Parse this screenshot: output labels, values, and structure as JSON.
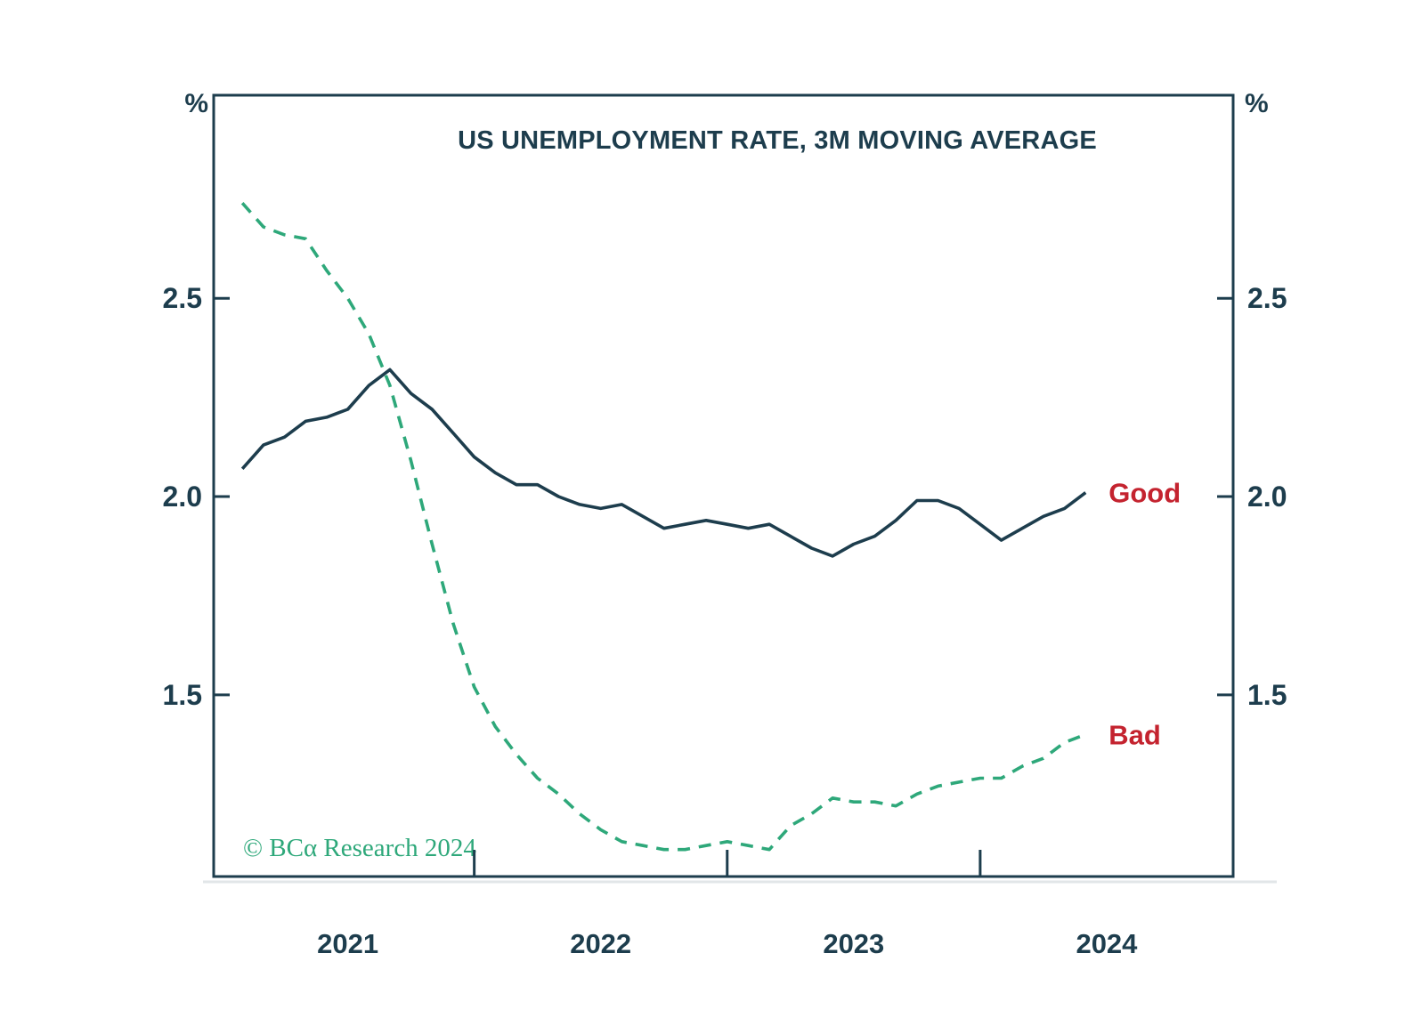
{
  "page": {
    "background": "#ffffff"
  },
  "colors": {
    "navy": "#1d3d4d",
    "green": "#2ea87a",
    "red": "#c4232f",
    "shadow": "#ccd3d7"
  },
  "axes": {
    "percent_left": "%",
    "percent_right": "%"
  },
  "annotations": {
    "copyright": "© BCα Research 2024"
  },
  "chart_data": {
    "type": "line",
    "title": "US UNEMPLOYMENT RATE, 3M MOVING AVERAGE",
    "y_unit": "%",
    "grid": false,
    "legend": "inline-end-labels",
    "xlim": [
      2020.97,
      2025.0
    ],
    "ylim": [
      1.042,
      3.012
    ],
    "y_ticks": [
      "2.5",
      "2.0",
      "1.5"
    ],
    "y_tick_values": [
      2.5,
      2.0,
      1.5
    ],
    "x_tick_years": [
      2022,
      2023,
      2024
    ],
    "x_year_labels": [
      "2021",
      "2022",
      "2023",
      "2024"
    ],
    "series_label_color": "#c4232f",
    "x_months": [
      "2021-02",
      "2021-03",
      "2021-04",
      "2021-05",
      "2021-06",
      "2021-07",
      "2021-08",
      "2021-09",
      "2021-10",
      "2021-11",
      "2021-12",
      "2022-01",
      "2022-02",
      "2022-03",
      "2022-04",
      "2022-05",
      "2022-06",
      "2022-07",
      "2022-08",
      "2022-09",
      "2022-10",
      "2022-11",
      "2022-12",
      "2023-01",
      "2023-02",
      "2023-03",
      "2023-04",
      "2023-05",
      "2023-06",
      "2023-07",
      "2023-08",
      "2023-09",
      "2023-10",
      "2023-11",
      "2023-12",
      "2024-01",
      "2024-02",
      "2024-03",
      "2024-04",
      "2024-05",
      "2024-06"
    ],
    "series": [
      {
        "name": "Good",
        "line_style": "solid",
        "color": "#1d3d4d",
        "values": [
          2.07,
          2.13,
          2.15,
          2.19,
          2.2,
          2.22,
          2.28,
          2.32,
          2.26,
          2.22,
          2.16,
          2.1,
          2.06,
          2.03,
          2.03,
          2.0,
          1.98,
          1.97,
          1.98,
          1.95,
          1.92,
          1.93,
          1.94,
          1.93,
          1.92,
          1.93,
          1.9,
          1.87,
          1.85,
          1.88,
          1.9,
          1.94,
          1.99,
          1.99,
          1.97,
          1.93,
          1.89,
          1.92,
          1.95,
          1.97,
          2.01
        ]
      },
      {
        "name": "Bad",
        "line_style": "dashed",
        "color": "#2ea87a",
        "values": [
          2.74,
          2.68,
          2.66,
          2.65,
          2.57,
          2.5,
          2.41,
          2.28,
          2.09,
          1.88,
          1.68,
          1.52,
          1.42,
          1.35,
          1.29,
          1.25,
          1.2,
          1.16,
          1.13,
          1.12,
          1.11,
          1.11,
          1.12,
          1.13,
          1.12,
          1.11,
          1.17,
          1.2,
          1.24,
          1.23,
          1.23,
          1.22,
          1.25,
          1.27,
          1.28,
          1.29,
          1.29,
          1.32,
          1.34,
          1.38,
          1.4
        ]
      }
    ]
  }
}
